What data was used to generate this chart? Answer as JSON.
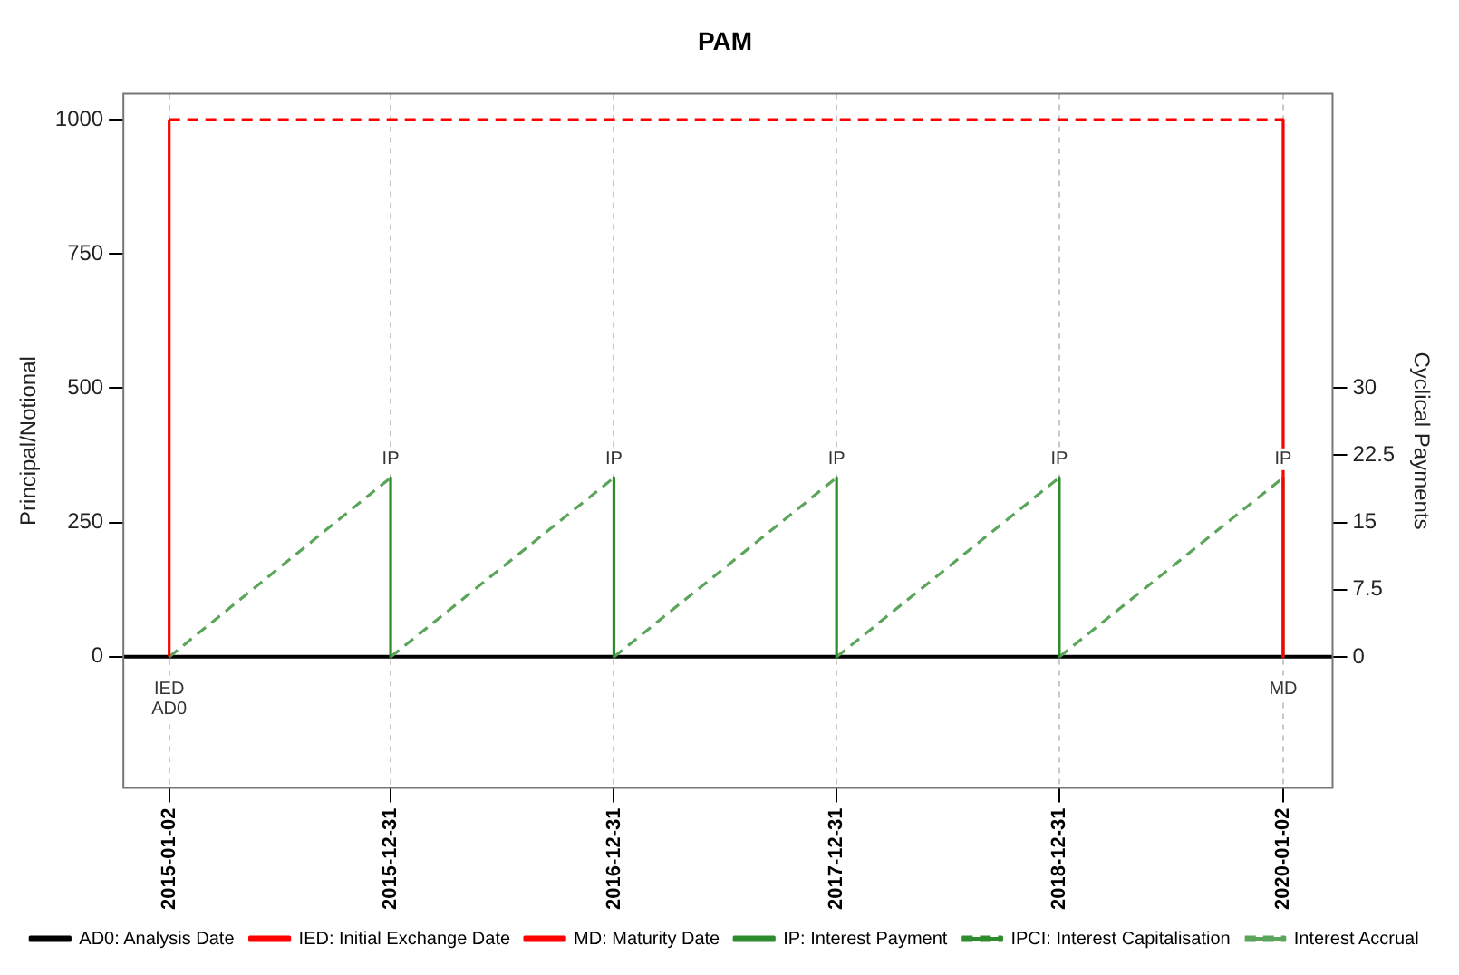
{
  "chart_data": {
    "type": "line",
    "title": "PAM",
    "ylabel": "Principal/Notional",
    "y2label": "Cyclical Payments",
    "xlim": [
      "2014-10-19",
      "2020-03-23"
    ],
    "xticks": [
      "2015-01-02",
      "2015-12-31",
      "2016-12-31",
      "2017-12-31",
      "2018-12-31",
      "2020-01-02"
    ],
    "ylim": [
      -244,
      1048
    ],
    "yticks": [
      0,
      250,
      500,
      750,
      1000
    ],
    "y2lim": [
      -14.6,
      62.8
    ],
    "y2ticks": [
      0,
      7.5,
      15,
      22.5,
      30
    ],
    "grid": "x",
    "legend": "bottom",
    "marker": "none",
    "ref_lines": [
      {
        "axis": "y",
        "value": 0,
        "color": "#000000",
        "line_style": "solid"
      }
    ],
    "annotations": [
      {
        "text": "IED",
        "x": "2015-01-02",
        "y": 0
      },
      {
        "text": "AD0",
        "x": "2015-01-02",
        "y": 0
      },
      {
        "text": "MD",
        "x": "2020-01-02",
        "y": 0
      },
      {
        "text": "IP",
        "x": "2015-12-31",
        "y": 334
      },
      {
        "text": "IP",
        "x": "2016-12-31",
        "y": 334
      },
      {
        "text": "IP",
        "x": "2017-12-31",
        "y": 334
      },
      {
        "text": "IP",
        "x": "2018-12-31",
        "y": 334
      },
      {
        "text": "IP",
        "x": "2020-01-02",
        "y": 334
      }
    ],
    "series": [
      {
        "name": "AD0: Analysis Date",
        "color": "#000000",
        "line_style": "solid"
      },
      {
        "name": "IED: Initial Exchange Date",
        "color": "#ff0000",
        "line_style": "solid",
        "x": [
          "2015-01-02",
          "2015-01-02"
        ],
        "values": [
          0,
          1000
        ]
      },
      {
        "name": "MD: Maturity Date",
        "color": "#ff0000",
        "line_style": "solid",
        "x": [
          "2020-01-02",
          "2020-01-02"
        ],
        "values": [
          1000,
          0
        ]
      },
      {
        "name": "IP: Interest Payment",
        "color": "#2e8b2e",
        "line_style": "solid",
        "axis": "y2",
        "x": [
          "2015-12-31",
          "2015-12-31",
          null,
          "2016-12-31",
          "2016-12-31",
          null,
          "2017-12-31",
          "2017-12-31",
          null,
          "2018-12-31",
          "2018-12-31",
          null,
          "2020-01-02",
          "2020-01-02"
        ],
        "values": [
          20,
          0,
          null,
          20,
          0,
          null,
          20,
          0,
          null,
          20,
          0,
          null,
          20,
          0
        ]
      },
      {
        "name": "IPCI: Interest Capitalisation",
        "color": "#2e8b2e",
        "line_style": "dashed"
      },
      {
        "name": "Interest Accrual",
        "color": "#5aa55a",
        "line_style": "dashed",
        "axis": "y2",
        "x": [
          "2015-01-02",
          "2015-12-31",
          null,
          "2015-12-31",
          "2016-12-31",
          null,
          "2016-12-31",
          "2017-12-31",
          null,
          "2017-12-31",
          "2018-12-31",
          null,
          "2018-12-31",
          "2020-01-02"
        ],
        "values": [
          0,
          20,
          null,
          0,
          20,
          null,
          0,
          20,
          null,
          0,
          20,
          null,
          0,
          20
        ]
      },
      {
        "color": "#ff0000",
        "line_style": "dashed",
        "x": [
          "2015-01-02",
          "2020-01-02"
        ],
        "values": [
          1000,
          1000
        ]
      }
    ]
  }
}
